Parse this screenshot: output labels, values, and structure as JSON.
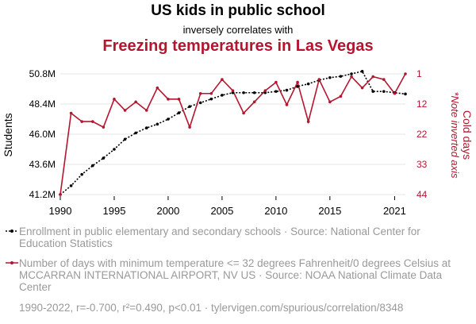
{
  "header": {
    "title": "US kids in public school",
    "subtitle": "inversely correlates with",
    "title2": "Freezing temperatures in Las Vegas"
  },
  "chart_data": {
    "type": "line",
    "x": [
      1990,
      1991,
      1992,
      1993,
      1994,
      1995,
      1996,
      1997,
      1998,
      1999,
      2000,
      2001,
      2002,
      2003,
      2004,
      2005,
      2006,
      2007,
      2008,
      2009,
      2010,
      2011,
      2012,
      2013,
      2014,
      2015,
      2016,
      2017,
      2018,
      2019,
      2020,
      2021,
      2022
    ],
    "x_ticks": [
      1990,
      1995,
      2000,
      2005,
      2010,
      2015,
      2021
    ],
    "xlim": [
      1990,
      2022
    ],
    "series": [
      {
        "name": "Students",
        "axis": "left",
        "color": "#000000",
        "style": "dotted-marker",
        "values": [
          41.2,
          41.9,
          42.8,
          43.5,
          44.1,
          44.8,
          45.6,
          46.1,
          46.5,
          46.8,
          47.2,
          47.7,
          48.2,
          48.5,
          48.8,
          49.1,
          49.3,
          49.3,
          49.3,
          49.3,
          49.4,
          49.5,
          49.8,
          50.0,
          50.3,
          50.5,
          50.6,
          50.8,
          51.0,
          49.4,
          49.4,
          49.3,
          49.2
        ]
      },
      {
        "name": "Cold days",
        "axis": "right",
        "inverted": true,
        "color": "#b5162f",
        "style": "solid-marker",
        "values": [
          44,
          15,
          18,
          18,
          20,
          10,
          14,
          11,
          14,
          6,
          10,
          10,
          20,
          8,
          8,
          3,
          7,
          15,
          11,
          7,
          4,
          12,
          4,
          18,
          3,
          11,
          9,
          2,
          6,
          2,
          3,
          8,
          1
        ]
      }
    ],
    "left_axis": {
      "label": "Students",
      "ylim": [
        41.2,
        50.8
      ],
      "ticks": [
        "50.8M",
        "48.4M",
        "46.0M",
        "43.6M",
        "41.2M"
      ]
    },
    "right_axis": {
      "label": "Cold days",
      "note": "*Note inverted axis",
      "ylim": [
        1,
        44
      ],
      "ticks": [
        "1",
        "12",
        "22",
        "33",
        "44"
      ]
    },
    "legend": [
      "Enrollment in public elementary and secondary schools · Source: National Center for Education Statistics",
      "Number of days with minimum temperature <= 32 degrees Fahrenheit/0 degrees Celsius at MCCARRAN INTERNATIONAL AIRPORT, NV US · Source: NOAA National Climate Data Center"
    ],
    "footer": "1990-2022, r=-0.700, r²=0.490, p<0.01 · tylervigen.com/spurious/correlation/8348"
  }
}
